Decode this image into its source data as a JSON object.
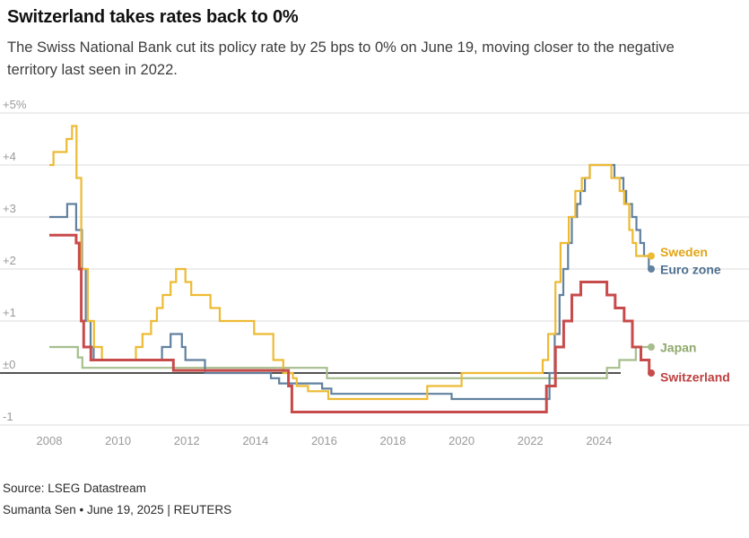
{
  "header": {
    "title": "Switzerland takes rates back to 0%",
    "subtitle": "The Swiss National Bank cut its policy rate by 25 bps to 0% on June 19, moving closer to the negative territory last seen in 2022."
  },
  "chart_data": {
    "type": "line",
    "step": true,
    "title": "Switzerland takes rates back to 0%",
    "xlabel": "",
    "ylabel": "",
    "grid": true,
    "legend_position": "right-end-labels",
    "x_range": [
      2008,
      2025.52
    ],
    "ylim": [
      -1,
      5
    ],
    "x_end": 2025.52,
    "x_ticks": [
      2008,
      2010,
      2012,
      2014,
      2016,
      2018,
      2020,
      2022,
      2024
    ],
    "y_ticks": [
      {
        "label": "+5%",
        "value": 5
      },
      {
        "label": "+4",
        "value": 4
      },
      {
        "label": "+3",
        "value": 3
      },
      {
        "label": "+2",
        "value": 2
      },
      {
        "label": "+1",
        "value": 1
      },
      {
        "label": "±0",
        "value": 0
      },
      {
        "label": "-1",
        "value": -1
      }
    ],
    "zero_line_color": "#1a1a1a",
    "gridline_color": "#dcdcdc",
    "series": [
      {
        "name": "Japan",
        "color": "#A6BE8C",
        "label_color": "#8FA96B",
        "width": 2.2,
        "label_dy": 1,
        "points": [
          [
            2008.0,
            0.5
          ],
          [
            2008.83,
            0.3
          ],
          [
            2008.96,
            0.1
          ],
          [
            2016.08,
            -0.1
          ],
          [
            2024.23,
            0.1
          ],
          [
            2024.59,
            0.25
          ],
          [
            2025.07,
            0.5
          ]
        ]
      },
      {
        "name": "Euro zone",
        "color": "#61819F",
        "label_color": "#4E708F",
        "width": 2.2,
        "label_dy": 1,
        "points": [
          [
            2008.0,
            3.0
          ],
          [
            2008.52,
            3.25
          ],
          [
            2008.78,
            2.75
          ],
          [
            2008.95,
            2.0
          ],
          [
            2009.06,
            1.0
          ],
          [
            2009.2,
            0.5
          ],
          [
            2009.29,
            0.25
          ],
          [
            2011.28,
            0.5
          ],
          [
            2011.53,
            0.75
          ],
          [
            2011.86,
            0.5
          ],
          [
            2011.96,
            0.25
          ],
          [
            2012.53,
            0.0
          ],
          [
            2014.45,
            -0.1
          ],
          [
            2014.69,
            -0.2
          ],
          [
            2015.94,
            -0.3
          ],
          [
            2016.21,
            -0.4
          ],
          [
            2019.71,
            -0.5
          ],
          [
            2022.56,
            0.0
          ],
          [
            2022.71,
            0.75
          ],
          [
            2022.85,
            1.5
          ],
          [
            2022.96,
            2.0
          ],
          [
            2023.1,
            2.5
          ],
          [
            2023.21,
            3.0
          ],
          [
            2023.36,
            3.25
          ],
          [
            2023.46,
            3.5
          ],
          [
            2023.59,
            3.75
          ],
          [
            2023.73,
            4.0
          ],
          [
            2024.45,
            3.75
          ],
          [
            2024.71,
            3.5
          ],
          [
            2024.79,
            3.25
          ],
          [
            2024.96,
            3.0
          ],
          [
            2025.09,
            2.75
          ],
          [
            2025.2,
            2.5
          ],
          [
            2025.31,
            2.25
          ],
          [
            2025.45,
            2.0
          ]
        ]
      },
      {
        "name": "Sweden",
        "color": "#EDBA33",
        "label_color": "#E2A516",
        "width": 2.2,
        "label_dy": -4,
        "points": [
          [
            2008.0,
            4.0
          ],
          [
            2008.12,
            4.25
          ],
          [
            2008.5,
            4.5
          ],
          [
            2008.66,
            4.75
          ],
          [
            2008.79,
            3.75
          ],
          [
            2008.93,
            2.0
          ],
          [
            2009.12,
            1.0
          ],
          [
            2009.3,
            0.5
          ],
          [
            2009.53,
            0.25
          ],
          [
            2010.52,
            0.5
          ],
          [
            2010.71,
            0.75
          ],
          [
            2010.96,
            1.0
          ],
          [
            2011.13,
            1.25
          ],
          [
            2011.3,
            1.5
          ],
          [
            2011.53,
            1.75
          ],
          [
            2011.69,
            2.0
          ],
          [
            2011.96,
            1.75
          ],
          [
            2012.13,
            1.5
          ],
          [
            2012.69,
            1.25
          ],
          [
            2012.96,
            1.0
          ],
          [
            2013.96,
            0.75
          ],
          [
            2014.52,
            0.25
          ],
          [
            2014.81,
            0.0
          ],
          [
            2015.09,
            -0.1
          ],
          [
            2015.2,
            -0.25
          ],
          [
            2015.53,
            -0.35
          ],
          [
            2016.12,
            -0.5
          ],
          [
            2019.0,
            -0.25
          ],
          [
            2020.0,
            0.0
          ],
          [
            2022.36,
            0.25
          ],
          [
            2022.52,
            0.75
          ],
          [
            2022.73,
            1.75
          ],
          [
            2022.88,
            2.5
          ],
          [
            2023.12,
            3.0
          ],
          [
            2023.31,
            3.5
          ],
          [
            2023.5,
            3.75
          ],
          [
            2023.73,
            4.0
          ],
          [
            2024.36,
            3.75
          ],
          [
            2024.6,
            3.5
          ],
          [
            2024.73,
            3.25
          ],
          [
            2024.88,
            2.75
          ],
          [
            2024.98,
            2.5
          ],
          [
            2025.08,
            2.25
          ]
        ]
      },
      {
        "name": "Switzerland",
        "color": "#C84B4B",
        "label_color": "#BE3F3F",
        "width": 3,
        "label_dy": 5,
        "points": [
          [
            2008.0,
            2.65
          ],
          [
            2008.78,
            2.5
          ],
          [
            2008.87,
            2.0
          ],
          [
            2008.93,
            1.0
          ],
          [
            2009.0,
            0.5
          ],
          [
            2009.21,
            0.25
          ],
          [
            2011.61,
            0.05
          ],
          [
            2014.96,
            -0.25
          ],
          [
            2015.06,
            -0.75
          ],
          [
            2022.47,
            -0.25
          ],
          [
            2022.73,
            0.5
          ],
          [
            2022.97,
            1.0
          ],
          [
            2023.21,
            1.5
          ],
          [
            2023.47,
            1.75
          ],
          [
            2024.23,
            1.5
          ],
          [
            2024.47,
            1.25
          ],
          [
            2024.73,
            1.0
          ],
          [
            2024.97,
            0.5
          ],
          [
            2025.22,
            0.25
          ],
          [
            2025.46,
            0.0
          ]
        ]
      }
    ]
  },
  "footer": {
    "source": "Source: LSEG Datastream",
    "byline": "Sumanta Sen • June 19, 2025 | REUTERS"
  }
}
